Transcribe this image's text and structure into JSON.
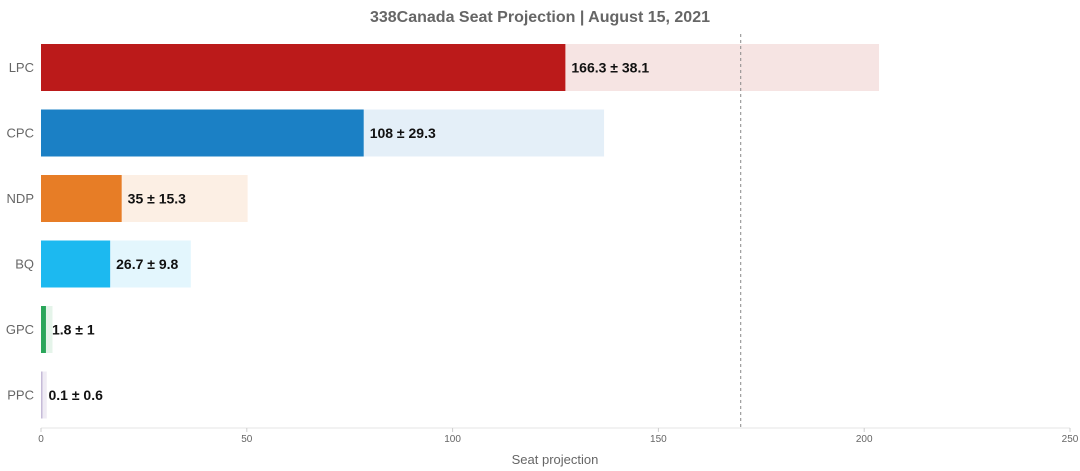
{
  "chart_data": {
    "type": "bar",
    "orientation": "horizontal",
    "title": "338Canada Seat Projection | August 15, 2021",
    "xlabel": "Seat projection",
    "ylabel": "",
    "xlim": [
      0,
      250
    ],
    "xticks": [
      0,
      50,
      100,
      150,
      200,
      250
    ],
    "reference_line": {
      "value": 170,
      "style": "dashed"
    },
    "categories": [
      "LPC",
      "CPC",
      "NDP",
      "BQ",
      "GPC",
      "PPC"
    ],
    "series": [
      {
        "values": [
          127.4,
          78.4,
          19.6,
          16.8,
          1.2,
          0.1
        ],
        "colors": [
          "#bb1a1a",
          "#1b80c5",
          "#e77d26",
          "#1cb9f0",
          "#2aa65a",
          "#c6bbd8"
        ]
      },
      {
        "values": [
          203.6,
          136.8,
          50.2,
          36.4,
          2.8,
          1.4
        ],
        "colors": [
          "#f6e4e3",
          "#e4eff8",
          "#fcefe4",
          "#e3f6fd",
          "#e5f4ea",
          "#efebf4"
        ]
      }
    ],
    "data_labels": [
      "166.3 ± 38.1",
      "108 ± 29.3",
      "35 ± 15.3",
      "26.7 ± 9.8",
      "1.8 ± 1",
      "0.1 ± 0.6"
    ],
    "grid": false,
    "legend": "none"
  }
}
